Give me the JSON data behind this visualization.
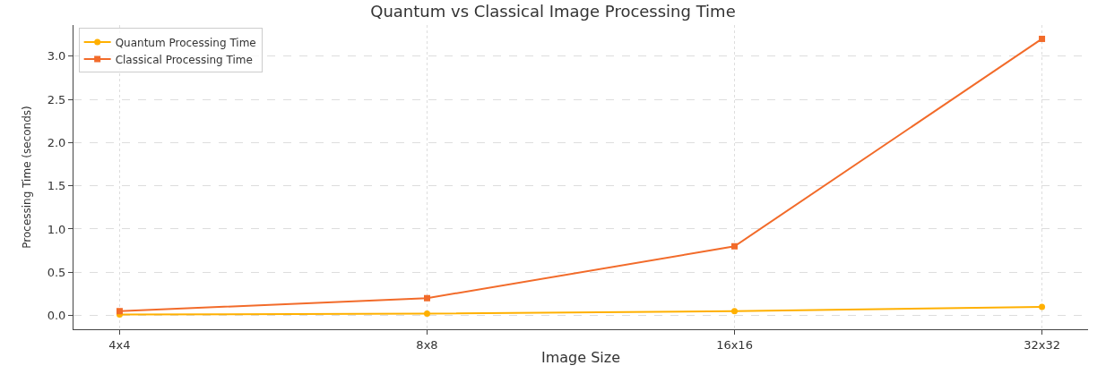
{
  "chart_data": {
    "type": "line",
    "title": "Quantum vs Classical Image Processing Time",
    "xlabel": "Image Size",
    "ylabel": "Processing Time (seconds)",
    "categories": [
      "4x4",
      "8x8",
      "16x16",
      "32x32"
    ],
    "series": [
      {
        "name": "Quantum Processing Time",
        "color": "#ffb000",
        "marker": "circle",
        "values": [
          0.01,
          0.02,
          0.05,
          0.1
        ]
      },
      {
        "name": "Classical Processing Time",
        "color": "#f26b2a",
        "marker": "square",
        "values": [
          0.05,
          0.2,
          0.8,
          3.2
        ]
      }
    ],
    "ylim": [
      -0.16,
      3.36
    ],
    "yticks": [
      {
        "value": 0,
        "label": "0.0"
      },
      {
        "value": 0.5,
        "label": "0.5"
      },
      {
        "value": 1,
        "label": "1.0"
      },
      {
        "value": 1.5,
        "label": "1.5"
      },
      {
        "value": 2,
        "label": "2.0"
      },
      {
        "value": 2.5,
        "label": "2.5"
      },
      {
        "value": 3,
        "label": "3.0"
      }
    ],
    "grid": true,
    "legend": "top left",
    "line_style": "solid"
  }
}
